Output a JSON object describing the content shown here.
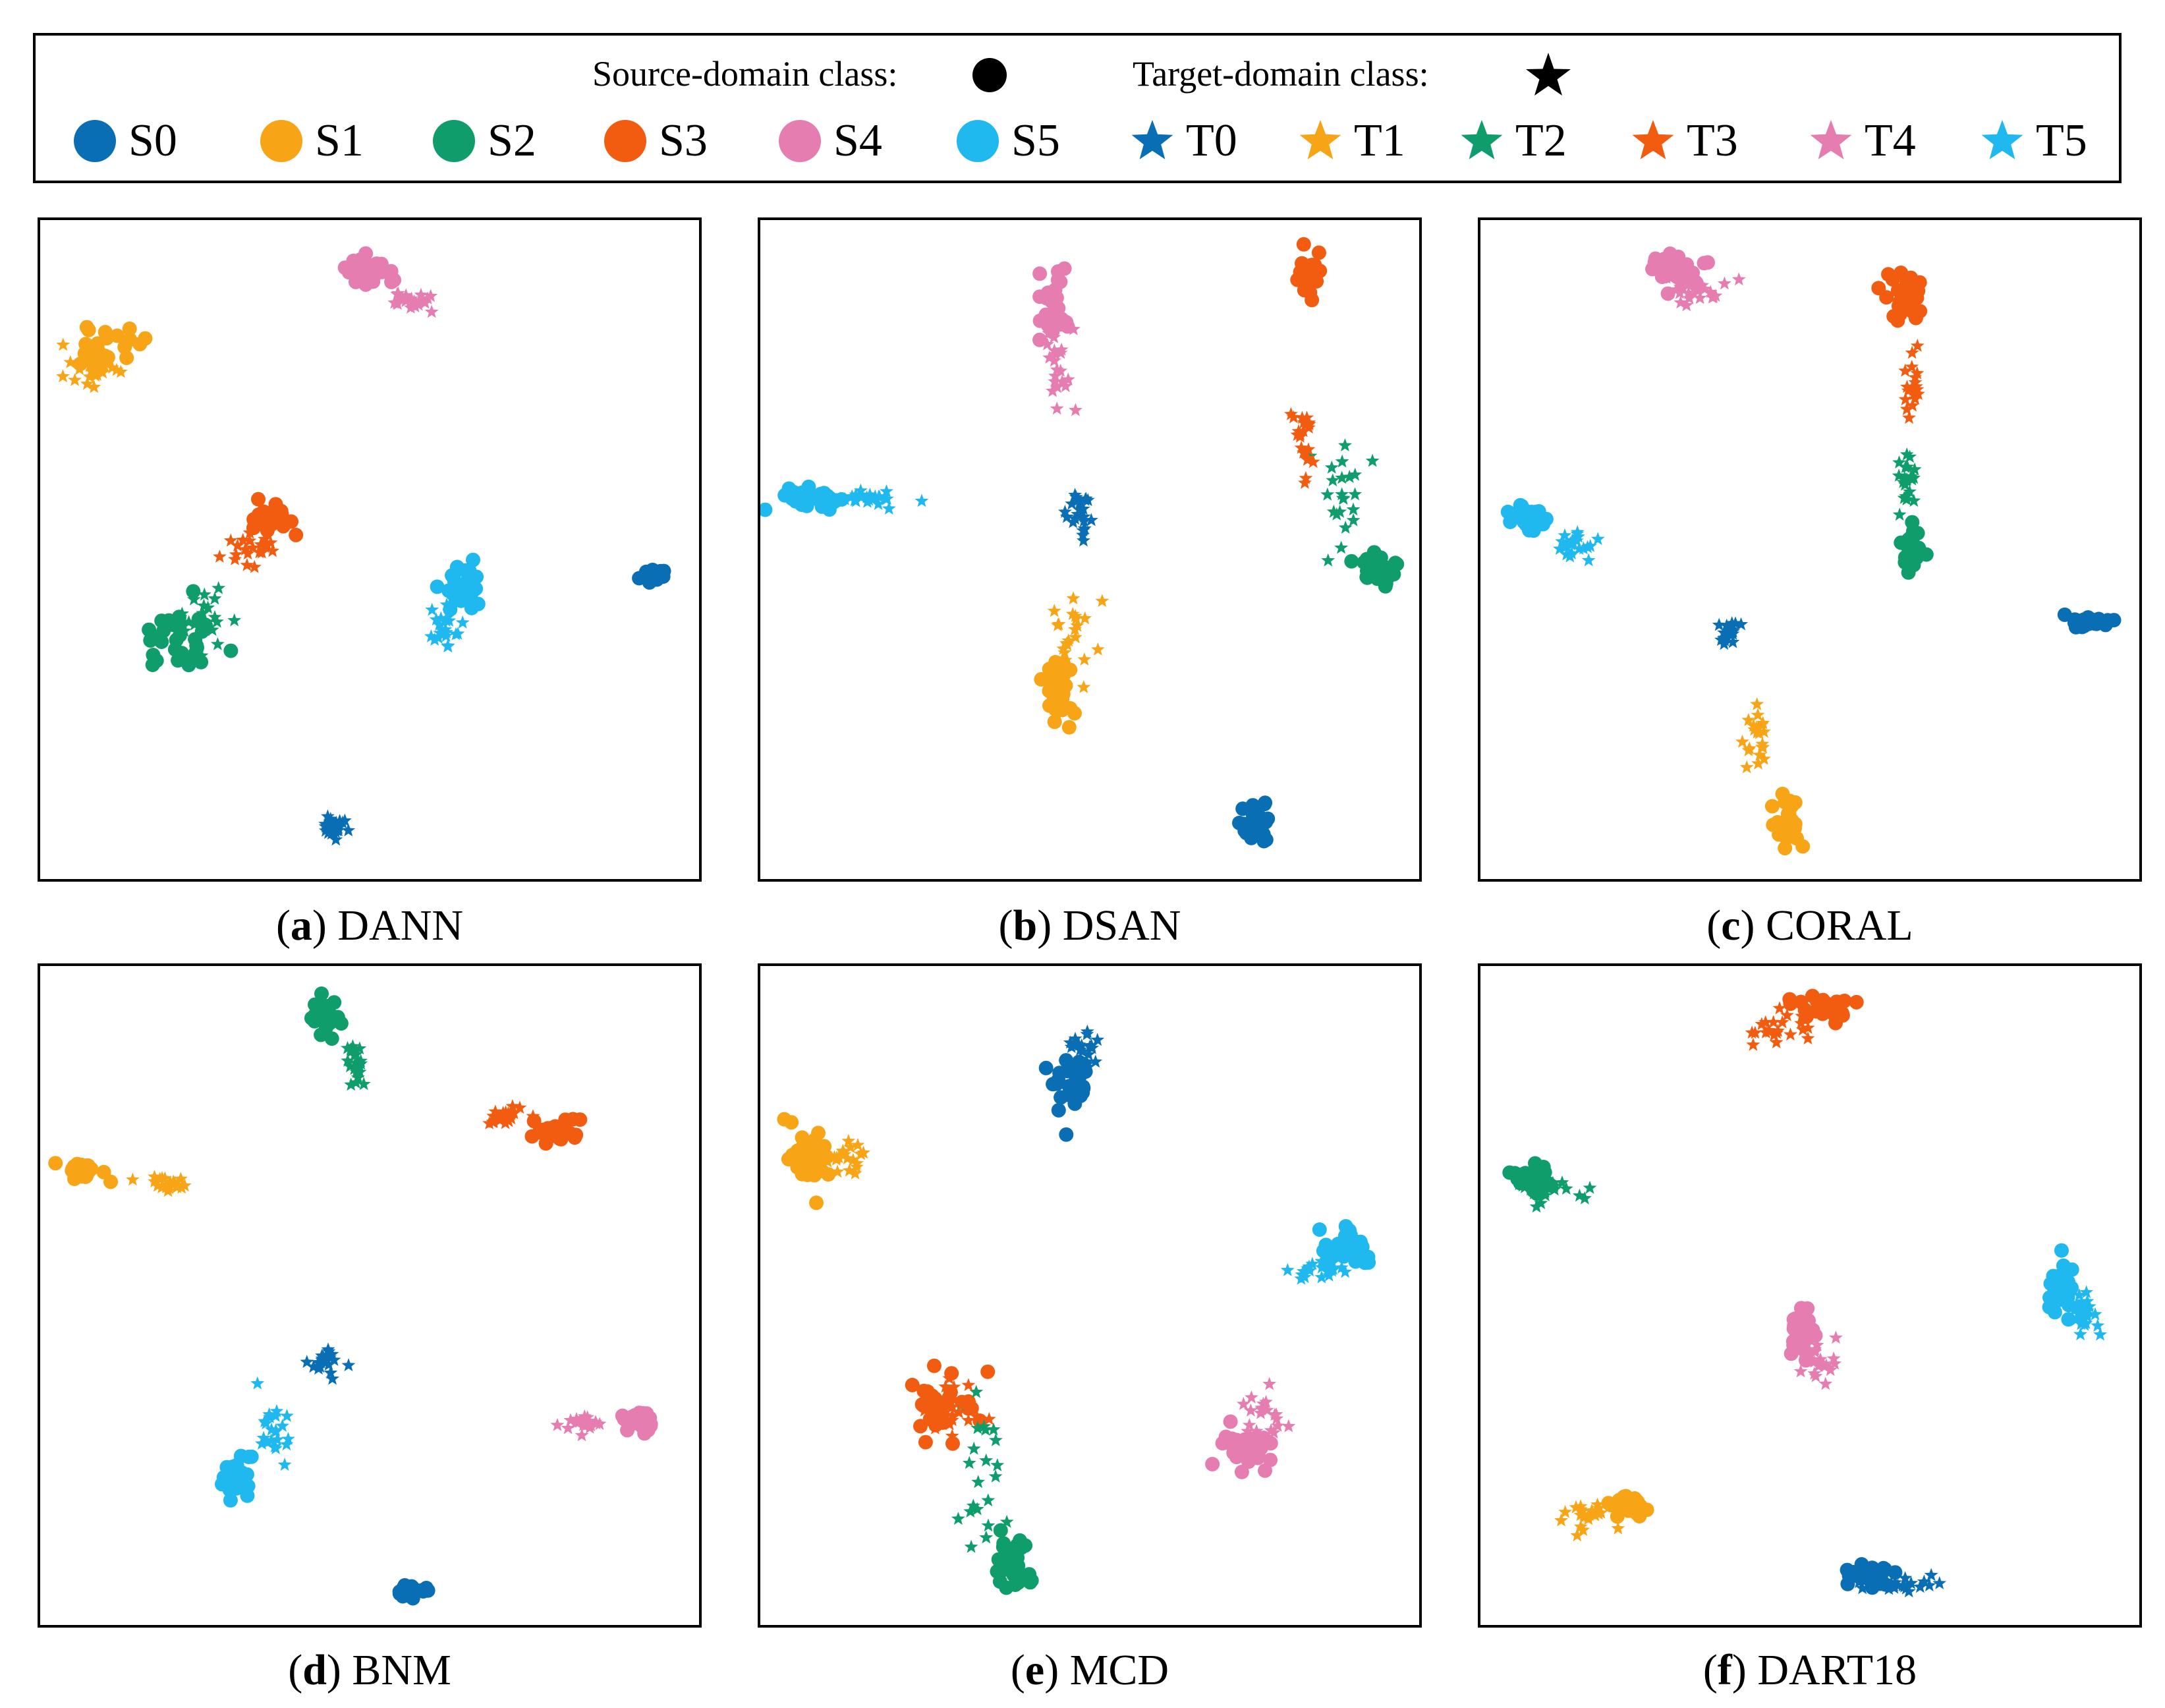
{
  "legend": {
    "source_label": "Source-domain class:",
    "target_label": "Target-domain class:",
    "entries": [
      {
        "label": "S0",
        "marker": "circle",
        "color": "#0a6eb5"
      },
      {
        "label": "S1",
        "marker": "circle",
        "color": "#f7a417"
      },
      {
        "label": "S2",
        "marker": "circle",
        "color": "#0e9d6b"
      },
      {
        "label": "S3",
        "marker": "circle",
        "color": "#f25c10"
      },
      {
        "label": "S4",
        "marker": "circle",
        "color": "#e57db0"
      },
      {
        "label": "S5",
        "marker": "circle",
        "color": "#1fb8ef"
      },
      {
        "label": "T0",
        "marker": "star",
        "color": "#0a6eb5"
      },
      {
        "label": "T1",
        "marker": "star",
        "color": "#f7a417"
      },
      {
        "label": "T2",
        "marker": "star",
        "color": "#0e9d6b"
      },
      {
        "label": "T3",
        "marker": "star",
        "color": "#f25c10"
      },
      {
        "label": "T4",
        "marker": "star",
        "color": "#e57db0"
      },
      {
        "label": "T5",
        "marker": "star",
        "color": "#1fb8ef"
      }
    ]
  },
  "chart_data": [
    {
      "type": "scatter",
      "caption_letter": "a",
      "caption_name": "DANN",
      "xlim": [
        0,
        100
      ],
      "ylim": [
        0,
        100
      ],
      "grid": false,
      "clusters": [
        {
          "class": "S0",
          "cx": 93.2,
          "cy": 46.1,
          "sx": 1.3,
          "sy": 0.9
        },
        {
          "class": "S1",
          "cx": 9.5,
          "cy": 80.9,
          "sx": 3.5,
          "sy": 2.0
        },
        {
          "class": "S2",
          "cx": 20.5,
          "cy": 35.9,
          "sx": 4.0,
          "sy": 3.5
        },
        {
          "class": "S3",
          "cx": 35.5,
          "cy": 54.5,
          "sx": 2.2,
          "sy": 1.8
        },
        {
          "class": "S4",
          "cx": 49.5,
          "cy": 92.3,
          "sx": 2.6,
          "sy": 1.7
        },
        {
          "class": "S5",
          "cx": 63.5,
          "cy": 43.3,
          "sx": 2.2,
          "sy": 3.0
        },
        {
          "class": "T0",
          "cx": 44.5,
          "cy": 7.8,
          "sx": 1.3,
          "sy": 1.8
        },
        {
          "class": "T1",
          "cx": 7.5,
          "cy": 77.5,
          "sx": 2.8,
          "sy": 1.6
        },
        {
          "class": "T2",
          "cx": 24.5,
          "cy": 38.9,
          "sx": 3.6,
          "sy": 2.8
        },
        {
          "class": "T3",
          "cx": 32.5,
          "cy": 50.3,
          "sx": 3.0,
          "sy": 2.2
        },
        {
          "class": "T4",
          "cx": 56.5,
          "cy": 87.7,
          "sx": 2.2,
          "sy": 1.2
        },
        {
          "class": "T5",
          "cx": 61.5,
          "cy": 38.9,
          "sx": 1.8,
          "sy": 2.2
        }
      ]
    },
    {
      "type": "scatter",
      "caption_letter": "b",
      "caption_name": "DSAN",
      "xlim": [
        0,
        100
      ],
      "ylim": [
        0,
        100
      ],
      "grid": false,
      "clusters": [
        {
          "class": "S0",
          "cx": 75.4,
          "cy": 8.5,
          "sx": 1.8,
          "sy": 2.2
        },
        {
          "class": "S1",
          "cx": 45.4,
          "cy": 28.6,
          "sx": 2.0,
          "sy": 3.0
        },
        {
          "class": "S2",
          "cx": 93.5,
          "cy": 46.6,
          "sx": 2.2,
          "sy": 2.2
        },
        {
          "class": "S3",
          "cx": 83.3,
          "cy": 91.4,
          "sx": 1.4,
          "sy": 2.8
        },
        {
          "class": "S4",
          "cx": 44.5,
          "cy": 87.1,
          "sx": 1.6,
          "sy": 3.6
        },
        {
          "class": "S5",
          "cx": 7.4,
          "cy": 57.7,
          "sx": 4.0,
          "sy": 1.2
        },
        {
          "class": "T0",
          "cx": 48.4,
          "cy": 55.0,
          "sx": 1.4,
          "sy": 3.6
        },
        {
          "class": "T1",
          "cx": 47.5,
          "cy": 36.4,
          "sx": 2.4,
          "sy": 5.0
        },
        {
          "class": "T2",
          "cx": 87.5,
          "cy": 57.7,
          "sx": 3.0,
          "sy": 6.0
        },
        {
          "class": "T3",
          "cx": 82.5,
          "cy": 67.6,
          "sx": 1.4,
          "sy": 4.8
        },
        {
          "class": "T4",
          "cx": 45.4,
          "cy": 77.2,
          "sx": 1.6,
          "sy": 6.5
        },
        {
          "class": "T5",
          "cx": 16.4,
          "cy": 57.7,
          "sx": 4.4,
          "sy": 0.8
        }
      ]
    },
    {
      "type": "scatter",
      "caption_letter": "c",
      "caption_name": "CORAL",
      "xlim": [
        0,
        100
      ],
      "ylim": [
        0,
        100
      ],
      "grid": false,
      "clusters": [
        {
          "class": "S0",
          "cx": 92.4,
          "cy": 38.9,
          "sx": 2.4,
          "sy": 0.6
        },
        {
          "class": "S1",
          "cx": 46.4,
          "cy": 8.5,
          "sx": 1.4,
          "sy": 2.4
        },
        {
          "class": "S2",
          "cx": 65.5,
          "cy": 49.8,
          "sx": 1.2,
          "sy": 2.4
        },
        {
          "class": "S3",
          "cx": 64.5,
          "cy": 87.9,
          "sx": 1.6,
          "sy": 3.0
        },
        {
          "class": "S4",
          "cx": 29.4,
          "cy": 92.3,
          "sx": 2.8,
          "sy": 1.8
        },
        {
          "class": "S5",
          "cx": 7.5,
          "cy": 54.5,
          "sx": 2.2,
          "sy": 1.4
        },
        {
          "class": "T0",
          "cx": 37.4,
          "cy": 37.5,
          "sx": 1.4,
          "sy": 1.4
        },
        {
          "class": "T1",
          "cx": 41.8,
          "cy": 20.6,
          "sx": 0.9,
          "sy": 3.6
        },
        {
          "class": "T2",
          "cx": 64.8,
          "cy": 59.9,
          "sx": 0.9,
          "sy": 4.0
        },
        {
          "class": "T3",
          "cx": 65.5,
          "cy": 75.6,
          "sx": 0.9,
          "sy": 4.4
        },
        {
          "class": "T4",
          "cx": 33.5,
          "cy": 89.3,
          "sx": 3.4,
          "sy": 1.6
        },
        {
          "class": "T5",
          "cx": 14.5,
          "cy": 50.7,
          "sx": 2.0,
          "sy": 1.2
        }
      ]
    },
    {
      "type": "scatter",
      "caption_letter": "d",
      "caption_name": "BNM",
      "xlim": [
        0,
        100
      ],
      "ylim": [
        0,
        100
      ],
      "grid": false,
      "clusters": [
        {
          "class": "S0",
          "cx": 56.3,
          "cy": 5.1,
          "sx": 1.6,
          "sy": 0.9
        },
        {
          "class": "S1",
          "cx": 6.3,
          "cy": 68.6,
          "sx": 2.2,
          "sy": 1.1
        },
        {
          "class": "S2",
          "cx": 43.3,
          "cy": 92.5,
          "sx": 1.8,
          "sy": 2.2
        },
        {
          "class": "S3",
          "cx": 78.3,
          "cy": 75.0,
          "sx": 2.4,
          "sy": 1.4
        },
        {
          "class": "S4",
          "cx": 90.6,
          "cy": 30.6,
          "sx": 2.0,
          "sy": 1.1
        },
        {
          "class": "S5",
          "cx": 29.8,
          "cy": 22.4,
          "sx": 1.6,
          "sy": 2.4
        },
        {
          "class": "T0",
          "cx": 43.3,
          "cy": 39.9,
          "sx": 2.2,
          "sy": 1.6
        },
        {
          "class": "T1",
          "cx": 19.4,
          "cy": 66.8,
          "sx": 2.6,
          "sy": 1.0
        },
        {
          "class": "T2",
          "cx": 48.4,
          "cy": 84.6,
          "sx": 1.2,
          "sy": 2.4
        },
        {
          "class": "T3",
          "cx": 70.4,
          "cy": 77.2,
          "sx": 2.6,
          "sy": 1.1
        },
        {
          "class": "T4",
          "cx": 82.4,
          "cy": 30.6,
          "sx": 2.6,
          "sy": 1.0
        },
        {
          "class": "T5",
          "cx": 35.4,
          "cy": 30.0,
          "sx": 2.2,
          "sy": 3.0
        }
      ]
    },
    {
      "type": "scatter",
      "caption_letter": "e",
      "caption_name": "MCD",
      "xlim": [
        0,
        100
      ],
      "ylim": [
        0,
        100
      ],
      "grid": false,
      "clusters": [
        {
          "class": "S0",
          "cx": 47.4,
          "cy": 82.5,
          "sx": 2.4,
          "sy": 3.6
        },
        {
          "class": "S1",
          "cx": 7.4,
          "cy": 71.3,
          "sx": 2.4,
          "sy": 3.6
        },
        {
          "class": "S2",
          "cx": 38.4,
          "cy": 8.5,
          "sx": 1.8,
          "sy": 3.6
        },
        {
          "class": "S3",
          "cx": 27.4,
          "cy": 33.7,
          "sx": 3.4,
          "sy": 3.6
        },
        {
          "class": "S4",
          "cx": 73.4,
          "cy": 26.9,
          "sx": 2.8,
          "sy": 2.4
        },
        {
          "class": "S5",
          "cx": 89.4,
          "cy": 57.3,
          "sx": 3.4,
          "sy": 2.2
        },
        {
          "class": "T0",
          "cx": 49.4,
          "cy": 87.4,
          "sx": 2.6,
          "sy": 2.4
        },
        {
          "class": "T1",
          "cx": 12.4,
          "cy": 70.8,
          "sx": 3.0,
          "sy": 1.8
        },
        {
          "class": "T2",
          "cx": 33.4,
          "cy": 22.4,
          "sx": 3.0,
          "sy": 8.0
        },
        {
          "class": "T3",
          "cx": 29.4,
          "cy": 32.4,
          "sx": 3.4,
          "sy": 3.0
        },
        {
          "class": "T4",
          "cx": 76.4,
          "cy": 30.9,
          "sx": 3.0,
          "sy": 3.0
        },
        {
          "class": "T5",
          "cx": 85.5,
          "cy": 53.7,
          "sx": 3.4,
          "sy": 1.6
        }
      ]
    },
    {
      "type": "scatter",
      "caption_letter": "f",
      "caption_name": "DART18",
      "xlim": [
        0,
        100
      ],
      "ylim": [
        0,
        100
      ],
      "grid": false,
      "clusters": [
        {
          "class": "S0",
          "cx": 59.4,
          "cy": 7.8,
          "sx": 2.6,
          "sy": 1.4
        },
        {
          "class": "S1",
          "cx": 22.5,
          "cy": 18.4,
          "sx": 2.2,
          "sy": 1.6
        },
        {
          "class": "S2",
          "cx": 8.2,
          "cy": 67.6,
          "sx": 2.4,
          "sy": 1.6
        },
        {
          "class": "S3",
          "cx": 51.5,
          "cy": 93.9,
          "sx": 3.0,
          "sy": 1.6
        },
        {
          "class": "S4",
          "cx": 48.6,
          "cy": 44.2,
          "sx": 1.8,
          "sy": 2.6
        },
        {
          "class": "S5",
          "cx": 88.4,
          "cy": 50.7,
          "sx": 1.4,
          "sy": 3.0
        },
        {
          "class": "T0",
          "cx": 64.4,
          "cy": 6.3,
          "sx": 3.6,
          "sy": 1.4
        },
        {
          "class": "T1",
          "cx": 16.4,
          "cy": 16.8,
          "sx": 2.6,
          "sy": 1.6
        },
        {
          "class": "T2",
          "cx": 10.4,
          "cy": 66.1,
          "sx": 3.2,
          "sy": 2.0
        },
        {
          "class": "T3",
          "cx": 45.5,
          "cy": 90.9,
          "sx": 3.2,
          "sy": 1.8
        },
        {
          "class": "T4",
          "cx": 51.5,
          "cy": 39.9,
          "sx": 2.6,
          "sy": 2.4
        },
        {
          "class": "T5",
          "cx": 91.5,
          "cy": 46.6,
          "sx": 1.6,
          "sy": 2.6
        }
      ]
    }
  ]
}
